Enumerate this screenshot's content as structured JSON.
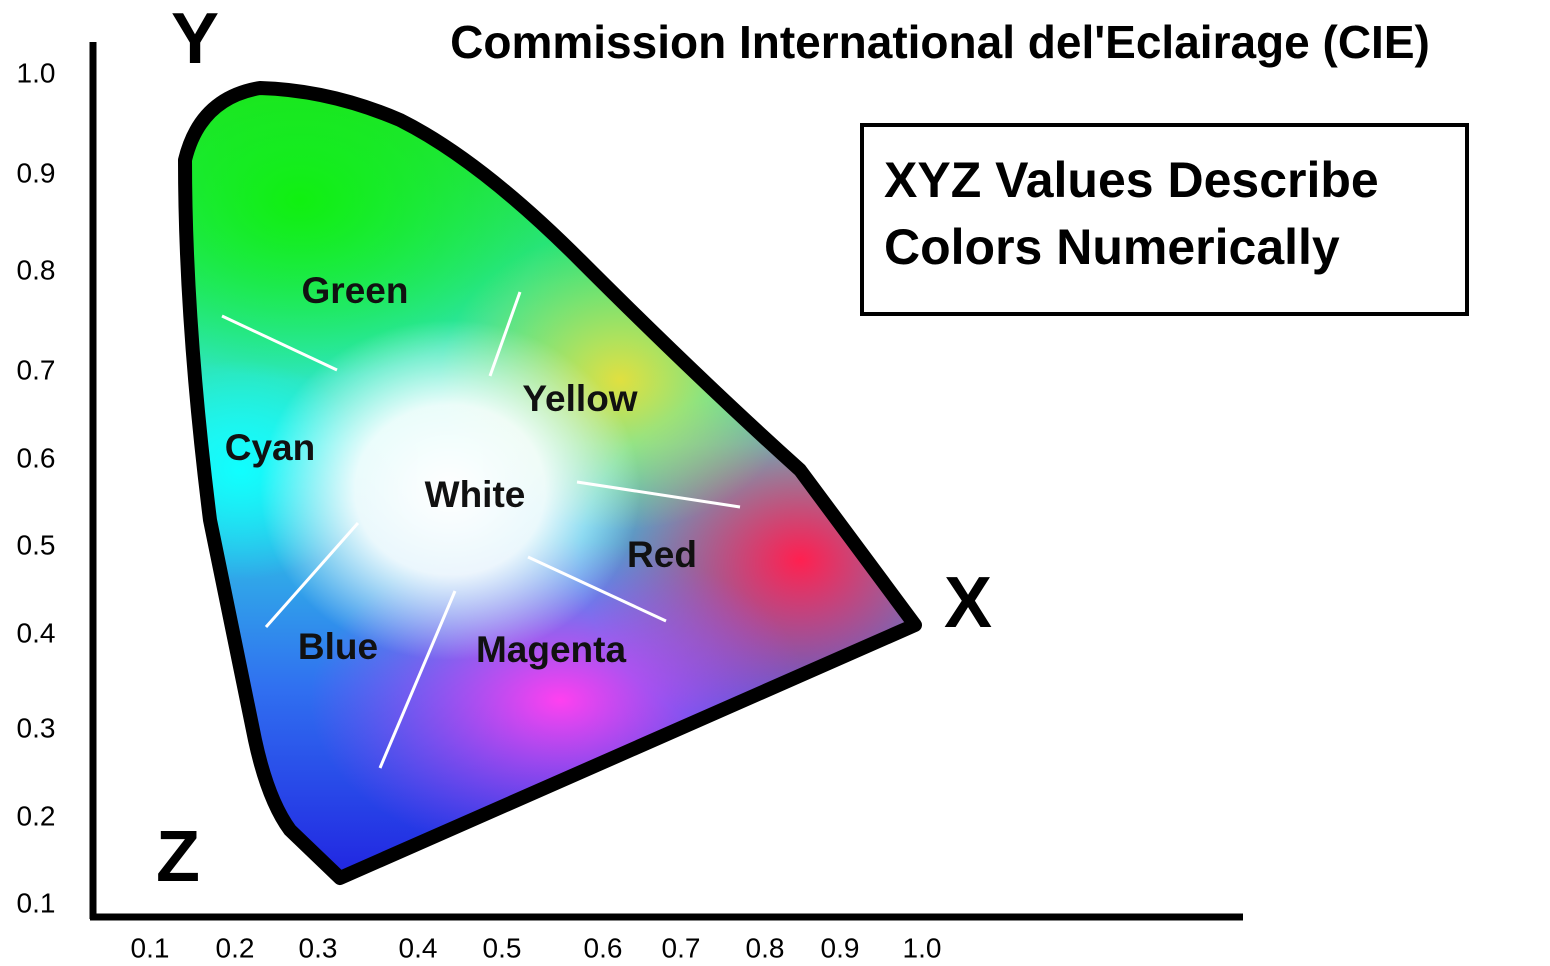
{
  "title": "Commission International del'Eclairage (CIE)",
  "axes": {
    "y_letter": "Y",
    "x_letter": "X",
    "z_letter": "Z"
  },
  "info_box": {
    "lines": [
      "XYZ Values Describe",
      "Colors Numerically"
    ]
  },
  "color_labels": [
    "Green",
    "Cyan",
    "Yellow",
    "White",
    "Red",
    "Blue",
    "Magenta"
  ],
  "y_tick_labels": [
    "1.0",
    "0.9",
    "0.8",
    "0.7",
    "0.6",
    "0.5",
    "0.4",
    "0.3",
    "0.2",
    "0.1"
  ],
  "x_tick_labels": [
    "0.1",
    "0.2",
    "0.3",
    "0.4",
    "0.5",
    "0.6",
    "0.7",
    "0.8",
    "0.9",
    "1.0"
  ]
}
